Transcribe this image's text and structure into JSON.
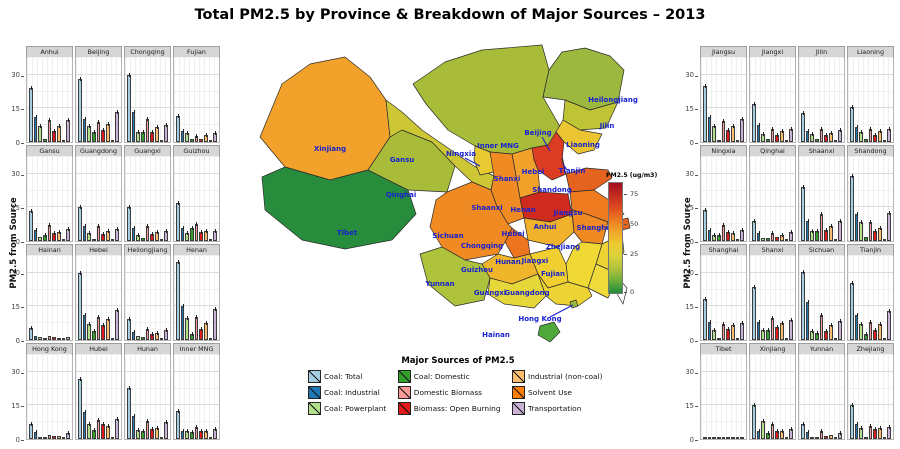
{
  "header": {
    "title": "Total PM2.5 by Province & Breakdown of Major Sources – 2013"
  },
  "chart_data": {
    "type": "bar",
    "title": "Total PM2.5 by Province & Breakdown of Major Sources – 2013",
    "ylabel": "PM2.5 from Source",
    "ylim": [
      0,
      38
    ],
    "yticks": [
      0,
      15,
      30
    ],
    "grid": true,
    "legend": {
      "title": "Major Sources of PM2.5",
      "position": "bottom-center",
      "sources": [
        "Coal: Total",
        "Coal: Industrial",
        "Coal: Powerplant",
        "Coal: Domestic",
        "Domestic Biomass",
        "Biomass: Open Burning",
        "Industrial (non-coal)",
        "Solvent Use",
        "Transportation"
      ],
      "colors": [
        "#a6cee3",
        "#1f78b4",
        "#b2df8a",
        "#33a02c",
        "#fb9a99",
        "#e31a1c",
        "#fdbf6f",
        "#ff7f00",
        "#cab2d6"
      ]
    },
    "left_panels": [
      {
        "province": "Anhui",
        "values": [
          24,
          11,
          7,
          1.5,
          10,
          5,
          7,
          0.3,
          10
        ]
      },
      {
        "province": "Beijing",
        "values": [
          28,
          10.5,
          7,
          4.5,
          9,
          5.5,
          8,
          0.3,
          13.5
        ]
      },
      {
        "province": "Chongqing",
        "values": [
          30,
          13.5,
          4.5,
          4.5,
          10.5,
          4.5,
          6.5,
          0.3,
          7.5
        ]
      },
      {
        "province": "Fujian",
        "values": [
          11.5,
          5,
          4,
          1.5,
          2.5,
          1.5,
          3,
          0.3,
          4
        ]
      },
      {
        "province": "Gansu",
        "values": [
          13.5,
          5,
          2,
          2.5,
          7,
          3.5,
          4,
          0.2,
          5.5
        ]
      },
      {
        "province": "Guangdong",
        "values": [
          15,
          6.5,
          3.5,
          1,
          6.5,
          3,
          4.5,
          0.2,
          5.5
        ]
      },
      {
        "province": "Guangxi",
        "values": [
          15,
          6,
          2.5,
          1.5,
          6.5,
          3,
          4,
          0.2,
          4.5
        ]
      },
      {
        "province": "Guizhou",
        "values": [
          17,
          6,
          3.5,
          6,
          7.5,
          4,
          4.5,
          0.2,
          4.5
        ]
      },
      {
        "province": "Hainan",
        "values": [
          5.5,
          2,
          1.5,
          0.3,
          2,
          1.5,
          1,
          0.1,
          1.5
        ]
      },
      {
        "province": "Hebei",
        "values": [
          30,
          11,
          7,
          4,
          10.5,
          6.5,
          9.5,
          0.3,
          13.5
        ]
      },
      {
        "province": "Heilongjiang",
        "values": [
          9.5,
          3.5,
          2,
          1.5,
          5,
          2.5,
          3,
          0.2,
          4.5
        ]
      },
      {
        "province": "Henan",
        "values": [
          35,
          15,
          10,
          2.5,
          10.5,
          5,
          7.5,
          0.3,
          14
        ]
      },
      {
        "province": "Hong Kong",
        "values": [
          6.5,
          3,
          0.8,
          0.4,
          1.8,
          1.2,
          1.5,
          0.2,
          2.5
        ]
      },
      {
        "province": "Hubei",
        "values": [
          27,
          12,
          6.5,
          4,
          8.5,
          6.5,
          6,
          0.3,
          9
        ]
      },
      {
        "province": "Hunan",
        "values": [
          23,
          10.5,
          4,
          3.5,
          8,
          4.5,
          5,
          0.3,
          7.5
        ]
      },
      {
        "province": "Inner MNG",
        "values": [
          12.5,
          3.5,
          3.5,
          3,
          5.5,
          3.5,
          3.5,
          0.2,
          4.5
        ]
      }
    ],
    "right_panels": [
      {
        "province": "Jiangsu",
        "values": [
          25,
          11,
          7,
          1,
          9.5,
          5.5,
          7,
          0.3,
          10.5
        ]
      },
      {
        "province": "Jiangxi",
        "values": [
          17,
          7.5,
          3.5,
          1.5,
          6,
          3,
          5,
          0.2,
          6
        ]
      },
      {
        "province": "Jilin",
        "values": [
          13,
          5,
          3.5,
          1.5,
          6,
          3,
          4,
          0.2,
          5.5
        ]
      },
      {
        "province": "Liaoning",
        "values": [
          15.5,
          6.5,
          4.5,
          1.5,
          6,
          3,
          5,
          0.2,
          6
        ]
      },
      {
        "province": "Ningxia",
        "values": [
          14,
          5,
          2.5,
          2.5,
          7,
          4,
          3.5,
          0.2,
          5
        ]
      },
      {
        "province": "Qinghai",
        "values": [
          9,
          3.5,
          1.5,
          1.5,
          3.5,
          2,
          2.5,
          0.2,
          4
        ]
      },
      {
        "province": "Shaanxi",
        "values": [
          24,
          9,
          4.5,
          4.5,
          12,
          5,
          6.5,
          0.3,
          9
        ]
      },
      {
        "province": "Shandong",
        "values": [
          29,
          12,
          8.5,
          2,
          8.5,
          4.5,
          6,
          0.3,
          12.5
        ]
      },
      {
        "province": "Shanghai",
        "values": [
          18.5,
          8,
          4.5,
          1,
          7,
          5,
          6.5,
          0.3,
          7.5
        ]
      },
      {
        "province": "Shanxi",
        "values": [
          23.5,
          8,
          4.5,
          4.5,
          10,
          6,
          7.5,
          0.3,
          9
        ]
      },
      {
        "province": "Sichuan",
        "values": [
          30.5,
          17,
          4,
          3,
          11,
          4,
          6.5,
          0.3,
          8.5
        ]
      },
      {
        "province": "Tianjin",
        "values": [
          25.5,
          11,
          7,
          2.5,
          8,
          4.5,
          7,
          0.3,
          13
        ]
      },
      {
        "province": "Tibet",
        "values": [
          0.3,
          0.1,
          0.1,
          0.1,
          0.2,
          0.1,
          0.1,
          0.05,
          0.2
        ]
      },
      {
        "province": "Xinjiang",
        "values": [
          15,
          3.5,
          8,
          2.5,
          6.5,
          3.5,
          3.5,
          0.2,
          4.5
        ]
      },
      {
        "province": "Yunnan",
        "values": [
          6.5,
          3,
          1,
          1,
          3.5,
          1.5,
          2,
          0.2,
          2.5
        ]
      },
      {
        "province": "Zhejiang",
        "values": [
          15,
          6.5,
          5,
          1,
          6,
          4.5,
          5,
          0.2,
          5.5
        ]
      }
    ],
    "map": {
      "legend_title": "PM2.5 (ug/m3)",
      "legend_ticks": [
        75,
        50,
        25,
        0
      ],
      "gradient_top_to_bottom": [
        "#A50E21",
        "#C22B20",
        "#DC4A1F",
        "#EE7B20",
        "#F2A629",
        "#EECB31",
        "#D9D23A",
        "#AFC23C",
        "#6FAE3A",
        "#1F8B3B"
      ],
      "label_color": "#1822CE",
      "provinces": [
        {
          "id": "xinjiang",
          "name": "Xinjiang",
          "fill": "#F2A12B"
        },
        {
          "id": "tibet",
          "name": "Tibet",
          "fill": "#278C3C"
        },
        {
          "id": "qinghai",
          "name": "Qinghai",
          "fill": "#A9BC39"
        },
        {
          "id": "gansu",
          "name": "Gansu",
          "fill": "#CDC735"
        },
        {
          "id": "inner-mng",
          "name": "Inner MNG",
          "fill": "#A9BC39"
        },
        {
          "id": "heilongjiang",
          "name": "Heilongjiang",
          "fill": "#9CB83F"
        },
        {
          "id": "jilin",
          "name": "Jilin",
          "fill": "#BFC437"
        },
        {
          "id": "liaoning",
          "name": "Liaoning",
          "fill": "#EBC531"
        },
        {
          "id": "beijing",
          "name": "Beijing",
          "fill": "#C42B20"
        },
        {
          "id": "tianjin",
          "name": "Tianjin",
          "fill": "#E0561F"
        },
        {
          "id": "hebei",
          "name": "Hebei",
          "fill": "#DC3D22"
        },
        {
          "id": "shanxi",
          "name": "Shanxi",
          "fill": "#F2A12B"
        },
        {
          "id": "shandong",
          "name": "Shandong",
          "fill": "#E4631F"
        },
        {
          "id": "ningxia",
          "name": "Ningxia",
          "fill": "#E8C931"
        },
        {
          "id": "shaanxi",
          "name": "Shaanxi",
          "fill": "#F08A22"
        },
        {
          "id": "henan",
          "name": "Henan",
          "fill": "#CE2A1D"
        },
        {
          "id": "jiangsu",
          "name": "Jiangsu",
          "fill": "#EE7B20"
        },
        {
          "id": "anhui",
          "name": "Anhui",
          "fill": "#F08A22"
        },
        {
          "id": "shanghai",
          "name": "Shanghai",
          "fill": "#E4631F"
        },
        {
          "id": "hubei",
          "name": "Hubei",
          "fill": "#F0B22A"
        },
        {
          "id": "chongqing",
          "name": "Chongqing",
          "fill": "#ED7520"
        },
        {
          "id": "sichuan",
          "name": "Sichuan",
          "fill": "#F08A22"
        },
        {
          "id": "zhejiang",
          "name": "Zhejiang",
          "fill": "#EDD334"
        },
        {
          "id": "jiangxi",
          "name": "Jiangxi",
          "fill": "#F0D934"
        },
        {
          "id": "hunan",
          "name": "Hunan",
          "fill": "#F2CF30"
        },
        {
          "id": "guizhou",
          "name": "Guizhou",
          "fill": "#F0B62B"
        },
        {
          "id": "yunnan",
          "name": "Yunnan",
          "fill": "#AFC23C"
        },
        {
          "id": "fujian",
          "name": "Fujian",
          "fill": "#EFD93B"
        },
        {
          "id": "guangxi",
          "name": "Guangxi",
          "fill": "#E5D639"
        },
        {
          "id": "guangdong",
          "name": "Guangdong",
          "fill": "#EDD334"
        },
        {
          "id": "hong-kong",
          "name": "Hong Kong",
          "fill": "#9CB83F"
        },
        {
          "id": "hainan",
          "name": "Hainan",
          "fill": "#4EA93A"
        },
        {
          "id": "taiwan",
          "name": "",
          "fill": "#FFFFFF"
        }
      ]
    }
  }
}
